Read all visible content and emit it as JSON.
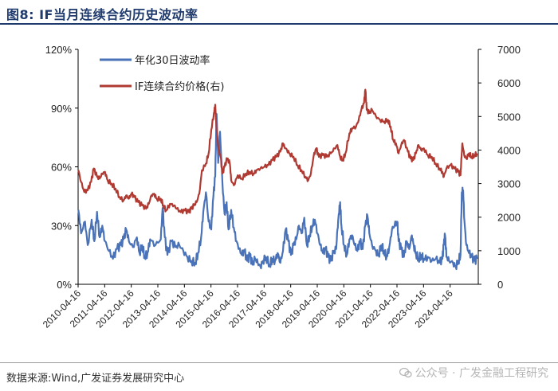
{
  "header": {
    "title": "图8:  IF当月连续合约历史波动率"
  },
  "footer": {
    "source": "数据来源:Wind,广发证券发展研究中心",
    "watermark": "公众号 · 广发金融工程研究"
  },
  "colors": {
    "vol": "#4a72b8",
    "price": "#b03a32",
    "title": "#1f3a6d"
  },
  "chart_data": {
    "type": "line",
    "title": "",
    "x_dates": [
      "2010-04-16",
      "2011-04-16",
      "2012-04-16",
      "2013-04-16",
      "2014-04-16",
      "2015-04-16",
      "2016-04-16",
      "2017-04-16",
      "2018-04-16",
      "2019-04-16",
      "2020-04-16",
      "2021-04-16",
      "2022-04-16",
      "2023-04-16",
      "2024-04-16"
    ],
    "x_range": [
      2010.29,
      2025.35
    ],
    "y_left": {
      "ticks": [
        "0%",
        "30%",
        "60%",
        "90%",
        "120%"
      ],
      "range": [
        0,
        120
      ]
    },
    "y_right": {
      "ticks": [
        "0",
        "1000",
        "2000",
        "3000",
        "4000",
        "5000",
        "6000",
        "7000"
      ],
      "range": [
        0,
        7000
      ]
    },
    "series": [
      {
        "name": "年化30日波动率",
        "axis": "left",
        "points": [
          [
            2010.3,
            38
          ],
          [
            2010.4,
            26
          ],
          [
            2010.55,
            32
          ],
          [
            2010.65,
            20
          ],
          [
            2010.8,
            33
          ],
          [
            2010.9,
            22
          ],
          [
            2011.0,
            37
          ],
          [
            2011.1,
            24
          ],
          [
            2011.2,
            30
          ],
          [
            2011.3,
            22
          ],
          [
            2011.45,
            17
          ],
          [
            2011.6,
            13
          ],
          [
            2011.75,
            18
          ],
          [
            2011.9,
            20
          ],
          [
            2012.0,
            23
          ],
          [
            2012.1,
            28
          ],
          [
            2012.2,
            22
          ],
          [
            2012.35,
            19
          ],
          [
            2012.5,
            24
          ],
          [
            2012.6,
            16
          ],
          [
            2012.7,
            20
          ],
          [
            2012.8,
            14
          ],
          [
            2012.9,
            16
          ],
          [
            2013.0,
            23
          ],
          [
            2013.2,
            20
          ],
          [
            2013.4,
            23
          ],
          [
            2013.47,
            39
          ],
          [
            2013.55,
            24
          ],
          [
            2013.65,
            15
          ],
          [
            2013.8,
            22
          ],
          [
            2013.95,
            19
          ],
          [
            2014.1,
            20
          ],
          [
            2014.25,
            17
          ],
          [
            2014.4,
            14
          ],
          [
            2014.55,
            12
          ],
          [
            2014.7,
            11
          ],
          [
            2014.8,
            16
          ],
          [
            2014.92,
            24
          ],
          [
            2015.0,
            37
          ],
          [
            2015.1,
            47
          ],
          [
            2015.2,
            32
          ],
          [
            2015.3,
            28
          ],
          [
            2015.38,
            45
          ],
          [
            2015.45,
            55
          ],
          [
            2015.5,
            87
          ],
          [
            2015.56,
            62
          ],
          [
            2015.63,
            78
          ],
          [
            2015.72,
            52
          ],
          [
            2015.8,
            36
          ],
          [
            2015.88,
            42
          ],
          [
            2015.95,
            28
          ],
          [
            2016.05,
            38
          ],
          [
            2016.15,
            29
          ],
          [
            2016.25,
            22
          ],
          [
            2016.35,
            18
          ],
          [
            2016.45,
            15
          ],
          [
            2016.55,
            17
          ],
          [
            2016.65,
            12
          ],
          [
            2016.75,
            15
          ],
          [
            2016.85,
            10
          ],
          [
            2016.95,
            13
          ],
          [
            2017.05,
            11
          ],
          [
            2017.15,
            9
          ],
          [
            2017.25,
            12
          ],
          [
            2017.35,
            14
          ],
          [
            2017.5,
            10
          ],
          [
            2017.6,
            13
          ],
          [
            2017.7,
            12
          ],
          [
            2017.8,
            16
          ],
          [
            2017.9,
            11
          ],
          [
            2018.0,
            17
          ],
          [
            2018.1,
            28
          ],
          [
            2018.2,
            22
          ],
          [
            2018.3,
            15
          ],
          [
            2018.4,
            20
          ],
          [
            2018.5,
            23
          ],
          [
            2018.6,
            30
          ],
          [
            2018.7,
            26
          ],
          [
            2018.8,
            34
          ],
          [
            2018.9,
            20
          ],
          [
            2019.0,
            25
          ],
          [
            2019.1,
            30
          ],
          [
            2019.2,
            33
          ],
          [
            2019.3,
            26
          ],
          [
            2019.4,
            20
          ],
          [
            2019.5,
            16
          ],
          [
            2019.6,
            18
          ],
          [
            2019.7,
            14
          ],
          [
            2019.8,
            12
          ],
          [
            2019.9,
            16
          ],
          [
            2020.0,
            18
          ],
          [
            2020.05,
            28
          ],
          [
            2020.1,
            36
          ],
          [
            2020.15,
            42
          ],
          [
            2020.2,
            30
          ],
          [
            2020.3,
            20
          ],
          [
            2020.4,
            15
          ],
          [
            2020.5,
            23
          ],
          [
            2020.6,
            25
          ],
          [
            2020.7,
            20
          ],
          [
            2020.8,
            17
          ],
          [
            2020.9,
            22
          ],
          [
            2021.0,
            18
          ],
          [
            2021.1,
            30
          ],
          [
            2021.18,
            35
          ],
          [
            2021.25,
            26
          ],
          [
            2021.35,
            20
          ],
          [
            2021.5,
            17
          ],
          [
            2021.6,
            15
          ],
          [
            2021.7,
            20
          ],
          [
            2021.8,
            17
          ],
          [
            2021.9,
            14
          ],
          [
            2022.0,
            19
          ],
          [
            2022.1,
            28
          ],
          [
            2022.2,
            30
          ],
          [
            2022.3,
            32
          ],
          [
            2022.35,
            22
          ],
          [
            2022.45,
            18
          ],
          [
            2022.55,
            14
          ],
          [
            2022.65,
            22
          ],
          [
            2022.75,
            18
          ],
          [
            2022.85,
            25
          ],
          [
            2022.92,
            20
          ],
          [
            2023.0,
            16
          ],
          [
            2023.1,
            13
          ],
          [
            2023.2,
            15
          ],
          [
            2023.3,
            13
          ],
          [
            2023.45,
            14
          ],
          [
            2023.6,
            12
          ],
          [
            2023.75,
            13
          ],
          [
            2023.9,
            11
          ],
          [
            2024.0,
            13
          ],
          [
            2024.05,
            20
          ],
          [
            2024.1,
            25
          ],
          [
            2024.15,
            14
          ],
          [
            2024.25,
            12
          ],
          [
            2024.4,
            11
          ],
          [
            2024.5,
            9
          ],
          [
            2024.6,
            12
          ],
          [
            2024.68,
            15
          ],
          [
            2024.73,
            47
          ],
          [
            2024.78,
            48
          ],
          [
            2024.83,
            32
          ],
          [
            2024.9,
            20
          ],
          [
            2025.0,
            16
          ],
          [
            2025.1,
            14
          ],
          [
            2025.2,
            12
          ],
          [
            2025.3,
            13
          ]
        ]
      },
      {
        "name": "IF连续合约价格(右)",
        "axis": "right",
        "points": [
          [
            2010.3,
            3400
          ],
          [
            2010.4,
            3050
          ],
          [
            2010.52,
            2750
          ],
          [
            2010.65,
            2800
          ],
          [
            2010.78,
            3050
          ],
          [
            2010.88,
            3450
          ],
          [
            2011.0,
            3200
          ],
          [
            2011.1,
            3150
          ],
          [
            2011.2,
            3300
          ],
          [
            2011.3,
            3350
          ],
          [
            2011.4,
            3100
          ],
          [
            2011.55,
            3000
          ],
          [
            2011.7,
            2850
          ],
          [
            2011.85,
            2600
          ],
          [
            2012.0,
            2500
          ],
          [
            2012.1,
            2650
          ],
          [
            2012.2,
            2550
          ],
          [
            2012.3,
            2700
          ],
          [
            2012.4,
            2600
          ],
          [
            2012.55,
            2450
          ],
          [
            2012.7,
            2350
          ],
          [
            2012.85,
            2250
          ],
          [
            2012.95,
            2400
          ],
          [
            2013.05,
            2650
          ],
          [
            2013.15,
            2700
          ],
          [
            2013.25,
            2550
          ],
          [
            2013.4,
            2550
          ],
          [
            2013.5,
            2350
          ],
          [
            2013.6,
            2200
          ],
          [
            2013.75,
            2400
          ],
          [
            2013.9,
            2350
          ],
          [
            2014.0,
            2250
          ],
          [
            2014.15,
            2150
          ],
          [
            2014.3,
            2200
          ],
          [
            2014.45,
            2150
          ],
          [
            2014.55,
            2250
          ],
          [
            2014.65,
            2350
          ],
          [
            2014.75,
            2450
          ],
          [
            2014.85,
            2700
          ],
          [
            2014.95,
            3400
          ],
          [
            2015.1,
            3600
          ],
          [
            2015.2,
            3900
          ],
          [
            2015.3,
            4600
          ],
          [
            2015.4,
            5100
          ],
          [
            2015.45,
            5350
          ],
          [
            2015.5,
            4600
          ],
          [
            2015.58,
            4000
          ],
          [
            2015.65,
            3800
          ],
          [
            2015.72,
            3300
          ],
          [
            2015.8,
            3500
          ],
          [
            2015.9,
            3750
          ],
          [
            2016.0,
            3600
          ],
          [
            2016.05,
            3100
          ],
          [
            2016.15,
            2950
          ],
          [
            2016.3,
            3250
          ],
          [
            2016.45,
            3150
          ],
          [
            2016.6,
            3300
          ],
          [
            2016.75,
            3350
          ],
          [
            2016.9,
            3300
          ],
          [
            2017.0,
            3400
          ],
          [
            2017.15,
            3450
          ],
          [
            2017.3,
            3500
          ],
          [
            2017.45,
            3550
          ],
          [
            2017.6,
            3700
          ],
          [
            2017.75,
            3800
          ],
          [
            2017.9,
            3950
          ],
          [
            2018.0,
            4200
          ],
          [
            2018.05,
            4100
          ],
          [
            2018.15,
            4000
          ],
          [
            2018.25,
            3900
          ],
          [
            2018.4,
            3800
          ],
          [
            2018.55,
            3550
          ],
          [
            2018.7,
            3400
          ],
          [
            2018.85,
            3200
          ],
          [
            2018.95,
            3100
          ],
          [
            2019.05,
            3300
          ],
          [
            2019.15,
            3800
          ],
          [
            2019.25,
            4050
          ],
          [
            2019.35,
            3800
          ],
          [
            2019.5,
            3850
          ],
          [
            2019.65,
            3800
          ],
          [
            2019.8,
            3900
          ],
          [
            2019.95,
            4050
          ],
          [
            2020.05,
            4150
          ],
          [
            2020.15,
            3800
          ],
          [
            2020.25,
            3700
          ],
          [
            2020.35,
            3900
          ],
          [
            2020.5,
            4500
          ],
          [
            2020.6,
            4650
          ],
          [
            2020.75,
            4700
          ],
          [
            2020.85,
            4900
          ],
          [
            2020.95,
            5200
          ],
          [
            2021.05,
            5400
          ],
          [
            2021.1,
            5800
          ],
          [
            2021.15,
            5200
          ],
          [
            2021.25,
            5100
          ],
          [
            2021.35,
            5200
          ],
          [
            2021.5,
            5000
          ],
          [
            2021.65,
            4900
          ],
          [
            2021.8,
            4850
          ],
          [
            2021.95,
            4900
          ],
          [
            2022.05,
            4700
          ],
          [
            2022.15,
            4300
          ],
          [
            2022.25,
            4200
          ],
          [
            2022.35,
            3900
          ],
          [
            2022.45,
            4150
          ],
          [
            2022.55,
            4300
          ],
          [
            2022.7,
            3950
          ],
          [
            2022.8,
            3750
          ],
          [
            2022.9,
            3700
          ],
          [
            2023.0,
            3900
          ],
          [
            2023.1,
            4150
          ],
          [
            2023.2,
            4000
          ],
          [
            2023.3,
            4050
          ],
          [
            2023.45,
            3850
          ],
          [
            2023.6,
            3800
          ],
          [
            2023.75,
            3600
          ],
          [
            2023.9,
            3450
          ],
          [
            2024.0,
            3350
          ],
          [
            2024.05,
            3200
          ],
          [
            2024.15,
            3450
          ],
          [
            2024.3,
            3550
          ],
          [
            2024.45,
            3450
          ],
          [
            2024.6,
            3350
          ],
          [
            2024.68,
            3250
          ],
          [
            2024.72,
            3800
          ],
          [
            2024.75,
            4200
          ],
          [
            2024.82,
            3850
          ],
          [
            2024.9,
            3750
          ],
          [
            2025.0,
            3900
          ],
          [
            2025.1,
            3800
          ],
          [
            2025.2,
            3850
          ],
          [
            2025.3,
            3900
          ]
        ]
      }
    ]
  }
}
